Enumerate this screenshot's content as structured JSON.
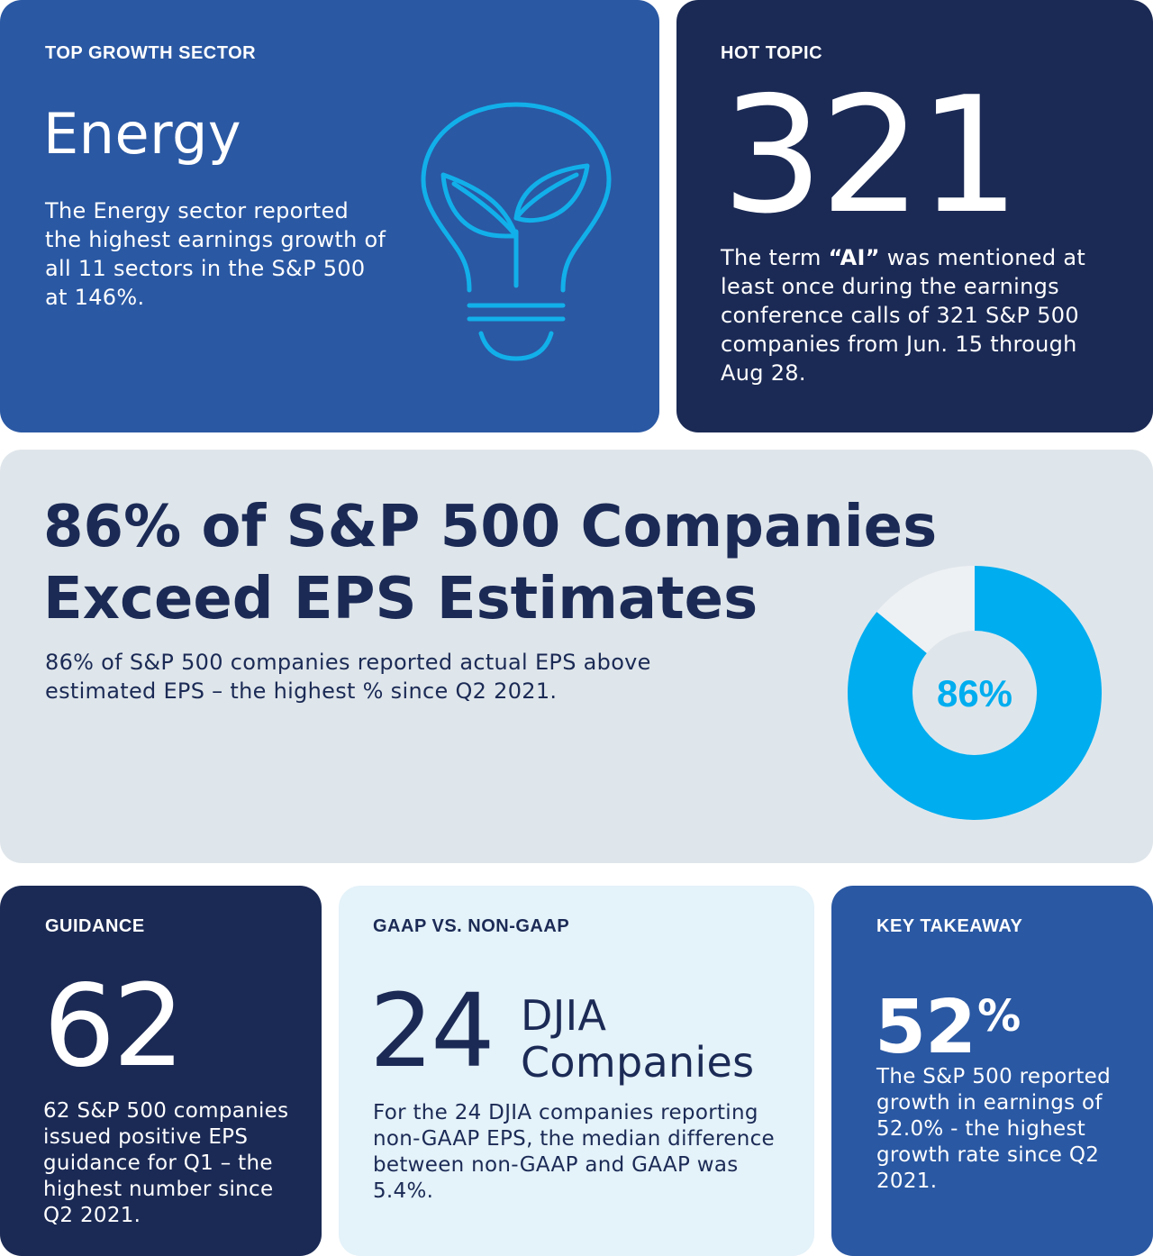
{
  "energy": {
    "eyebrow": "TOP GROWTH SECTOR",
    "headline": "Energy",
    "description": "The Energy sector reported the highest earnings growth of all 11 sectors in the S&P 500 at 146%.",
    "icon": "lightbulb-plant-icon"
  },
  "hot_topic": {
    "eyebrow": "HOT TOPIC",
    "number": "321",
    "desc_before": "The term ",
    "desc_bold": "“AI”",
    "desc_after": " was mentioned at least once during the earnings conference calls of 321 S&P 500 companies from Jun. 15 through Aug 28."
  },
  "eps": {
    "title": "86% of S&P 500 Companies Exceed EPS Estimates",
    "description": "86% of S&P 500 companies reported actual EPS above estimated EPS – the highest % since Q2 2021.",
    "donut_label": "86%",
    "donut_value": 0.86
  },
  "guidance": {
    "eyebrow": "GUIDANCE",
    "number": "62",
    "description": "62 S&P 500 companies issued positive EPS guidance for Q1 – the highest number since Q2 2021."
  },
  "gaap": {
    "eyebrow": "GAAP VS. NON-GAAP",
    "number": "24",
    "sub_line1": "DJIA",
    "sub_line2": "Companies",
    "description": "For the 24 DJIA companies reporting non-GAAP EPS, the median difference between non-GAAP and GAAP was 5.4%."
  },
  "key_takeaway": {
    "eyebrow": "KEY TAKEAWAY",
    "number": "52",
    "percent_sign": "%",
    "description": "The S&P 500 reported growth in earnings of 52.0% - the highest growth rate since Q2 2021."
  },
  "colors": {
    "blue_card": "#2a58a3",
    "navy_card": "#1b2a55",
    "grey_card": "#dfe6eb",
    "light_card": "#e4f2f9",
    "accent_cyan": "#00adef",
    "donut_track": "#eef1f4"
  }
}
